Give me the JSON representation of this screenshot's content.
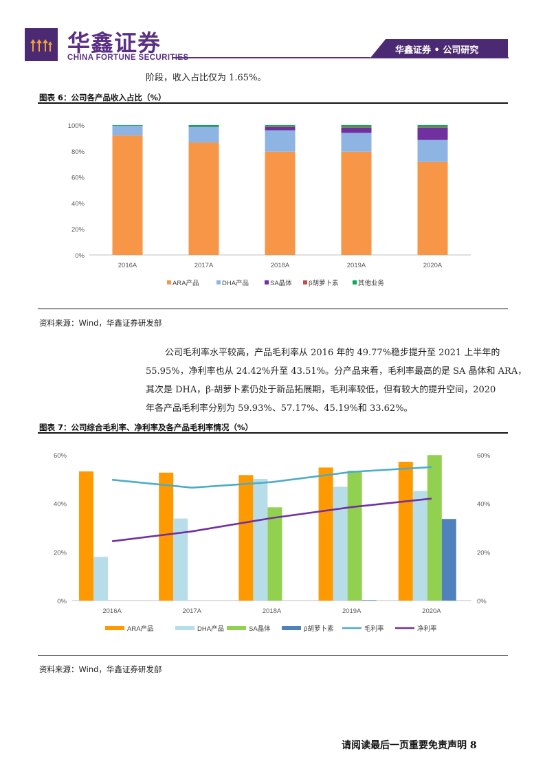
{
  "header": {
    "brand_cn": "华鑫证券",
    "brand_en": "CHINA FORTUNE SECURITIES",
    "tab_label": "华鑫证券 • 公司研究"
  },
  "body": {
    "para_top": "阶段，收入占比仅为 1.65%。",
    "para_middle": [
      "公司毛利率水平较高，产品毛利率从 2016 年的 49.77%稳步提升至 2021 上半年的",
      "55.95%，净利率也从 24.42%升至 43.51%。分产品来看，毛利率最高的是 SA 晶体和 ARA，",
      "其次是 DHA，β-胡萝卜素仍处于新品拓展期，毛利率较低，但有较大的提升空间，2020",
      "年各产品毛利率分别为 59.93%、57.17%、45.19%和 33.62%。"
    ]
  },
  "figure6": {
    "title": "图表 6：公司各产品收入占比（%）",
    "source": "资料来源：Wind，华鑫证券研发部"
  },
  "figure7": {
    "title": "图表 7：公司综合毛利率、净利率及各产品毛利率情况（%）",
    "source": "资料来源：Wind，华鑫证券研发部"
  },
  "footer": {
    "text": "请阅读最后一页重要免责声明 8"
  },
  "colors": {
    "brand_purple": "#5a2f84",
    "ara": "#f79646",
    "dha": "#8db4e2",
    "sa": "#7030a0",
    "beta": "#c0504d",
    "other": "#00b050",
    "fig7_ara": "#ff9900",
    "fig7_dha": "#b7dde8",
    "fig7_sa": "#92d050",
    "fig7_beta": "#4f81bd",
    "gross_line": "#4bacc6",
    "net_line": "#7030a0"
  },
  "chart_data": [
    {
      "type": "bar",
      "stacked": true,
      "categories": [
        "2016A",
        "2017A",
        "2018A",
        "2019A",
        "2020A"
      ],
      "series": [
        {
          "name": "ARA产品",
          "values": [
            92,
            86.5,
            79.5,
            79.5,
            71.5
          ]
        },
        {
          "name": "DHA产品",
          "values": [
            7.5,
            12,
            16.5,
            14.5,
            17
          ]
        },
        {
          "name": "SA晶体",
          "values": [
            0,
            0.3,
            2.5,
            4,
            9.5
          ]
        },
        {
          "name": "β胡萝卜素",
          "values": [
            0,
            0,
            0.5,
            0.5,
            0.5
          ]
        },
        {
          "name": "其他业务",
          "values": [
            0.5,
            1.2,
            1,
            1.5,
            1.5
          ]
        }
      ],
      "yticks": [
        "0%",
        "20%",
        "40%",
        "60%",
        "80%",
        "100%"
      ],
      "ylim": [
        0,
        100
      ],
      "legend": "bottom",
      "grid": false
    },
    {
      "type": "bar",
      "categories": [
        "2016A",
        "2017A",
        "2018A",
        "2019A",
        "2020A"
      ],
      "series": [
        {
          "name": "ARA产品",
          "values": [
            53.2,
            52.7,
            51.7,
            54.8,
            57.17
          ]
        },
        {
          "name": "DHA产品",
          "values": [
            18.0,
            33.8,
            50.1,
            46.9,
            45.19
          ]
        },
        {
          "name": "SA晶体",
          "values": [
            null,
            null,
            38.4,
            53.5,
            59.93
          ]
        },
        {
          "name": "β胡萝卜素",
          "values": [
            null,
            null,
            null,
            0.2,
            33.62
          ]
        }
      ],
      "lines": [
        {
          "name": "毛利率",
          "values": [
            49.77,
            46.5,
            48.8,
            53.0,
            55.0
          ]
        },
        {
          "name": "净利率",
          "values": [
            24.42,
            28.5,
            34.0,
            38.5,
            42.0
          ]
        }
      ],
      "yticks": [
        "0%",
        "20%",
        "40%",
        "60%"
      ],
      "ylim": [
        0,
        60
      ],
      "y2ticks": [
        "0%",
        "20%",
        "40%",
        "60%"
      ],
      "y2lim": [
        0,
        60
      ],
      "legend": "bottom",
      "grid": false
    }
  ]
}
